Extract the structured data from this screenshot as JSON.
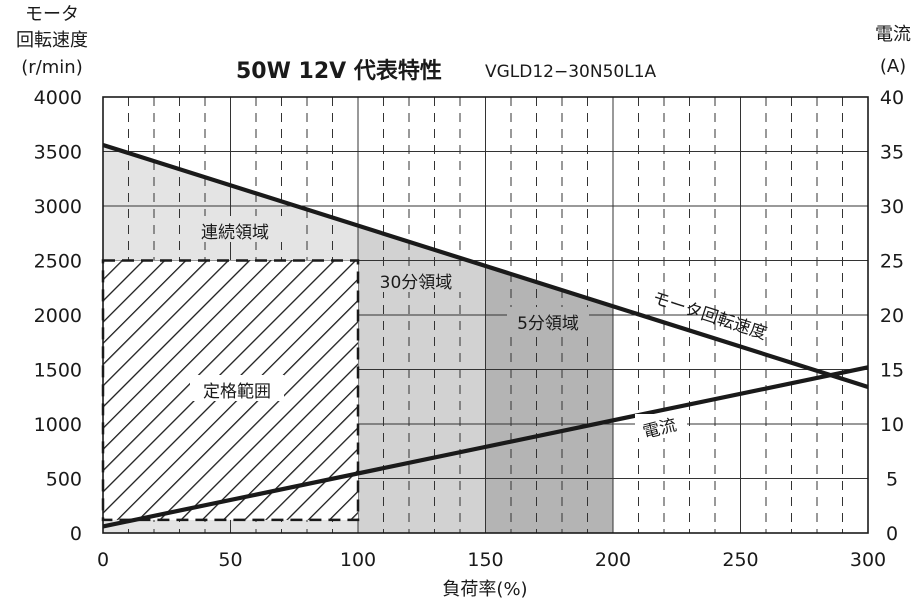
{
  "chart_data": {
    "type": "line",
    "title": "50W 12V 代表特性",
    "subtitle": "VGLD12−30N50L1A",
    "xlabel": "負荷率(%)",
    "ylabel_left_lines": [
      "モータ",
      "回転速度",
      "(r/min)"
    ],
    "ylabel_right_lines": [
      "電流",
      "(A)"
    ],
    "xlim": [
      0,
      300
    ],
    "ylim_left": [
      0,
      4000
    ],
    "ylim_right": [
      0,
      40
    ],
    "x_ticks": [
      "0",
      "50",
      "100",
      "150",
      "200",
      "250",
      "300"
    ],
    "x_tick_values": [
      0,
      50,
      100,
      150,
      200,
      250,
      300
    ],
    "y_left_ticks": [
      "0",
      "500",
      "1000",
      "1500",
      "2000",
      "2500",
      "3000",
      "3500",
      "4000"
    ],
    "y_left_tick_values": [
      0,
      500,
      1000,
      1500,
      2000,
      2500,
      3000,
      3500,
      4000
    ],
    "y_right_ticks": [
      "0",
      "5",
      "10",
      "15",
      "20",
      "25",
      "30",
      "35",
      "40"
    ],
    "y_right_tick_values": [
      0,
      5,
      10,
      15,
      20,
      25,
      30,
      35,
      40
    ],
    "grid": true,
    "minor_grid_step_x": 10,
    "major_grid_step_x": 50,
    "series": [
      {
        "name": "モータ回転速度",
        "axis": "left",
        "x": [
          0,
          300
        ],
        "y": [
          3560,
          1340
        ]
      },
      {
        "name": "電流",
        "axis": "right",
        "x": [
          0,
          300
        ],
        "y": [
          0.6,
          15.2
        ]
      }
    ],
    "regions": [
      {
        "name": "連続領域",
        "x": [
          0,
          100
        ],
        "top": "speed",
        "color": "#e4e4e4"
      },
      {
        "name": "30分領域",
        "x": [
          100,
          150
        ],
        "top": "speed",
        "color": "#d2d2d2"
      },
      {
        "name": "5分領域",
        "x": [
          150,
          200
        ],
        "top": "speed",
        "color": "#b4b4b4"
      }
    ],
    "rated_range": {
      "name": "定格範囲",
      "x": [
        0,
        100
      ],
      "y_left": [
        120,
        2500
      ]
    },
    "colors": {
      "curve": "#1a1a1a",
      "grid": "#333333",
      "hatch": "#1a1a1a"
    }
  }
}
